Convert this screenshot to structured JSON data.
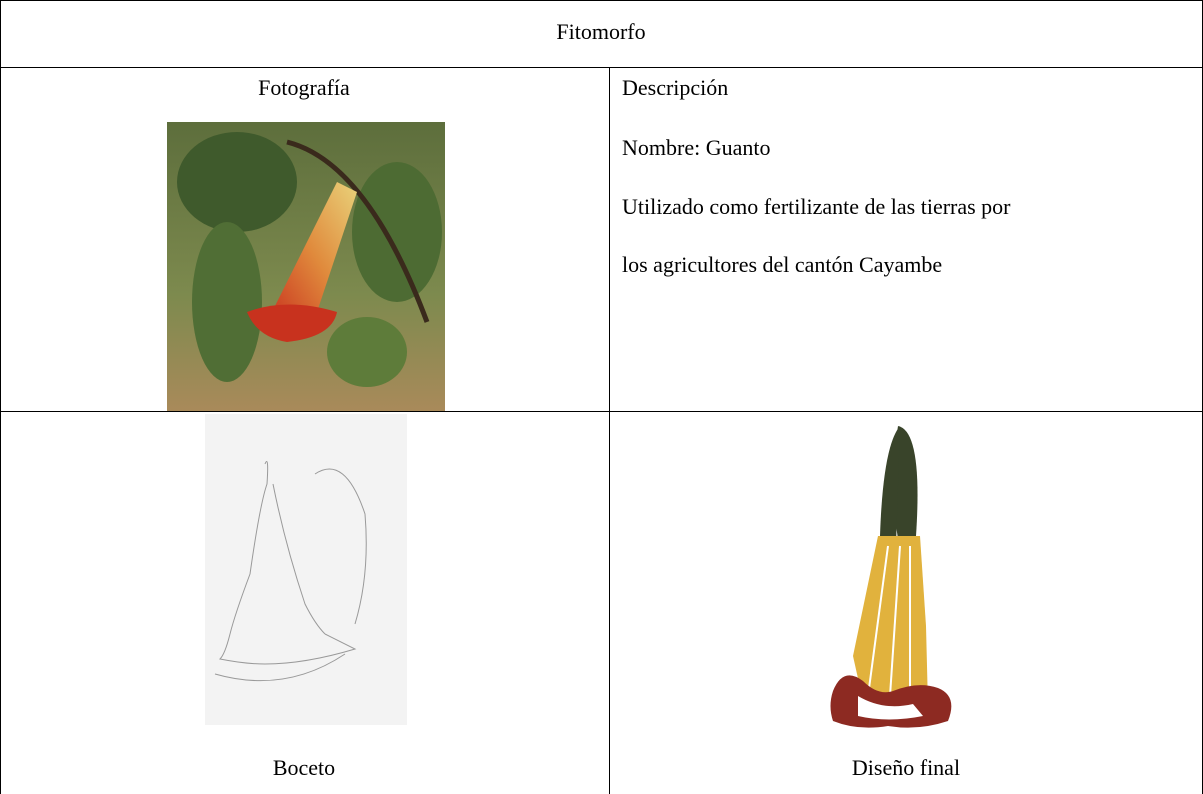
{
  "header": {
    "title": "Fitomorfo"
  },
  "table": {
    "photo_label": "Fotografía",
    "description": {
      "title": "Descripción",
      "lines": [
        "Nombre: Guanto",
        "Utilizado como fertilizante de las tierras por",
        "los agricultores del cantón Cayambe"
      ]
    },
    "sketch_caption": "Boceto",
    "final_caption": "Diseño final"
  }
}
